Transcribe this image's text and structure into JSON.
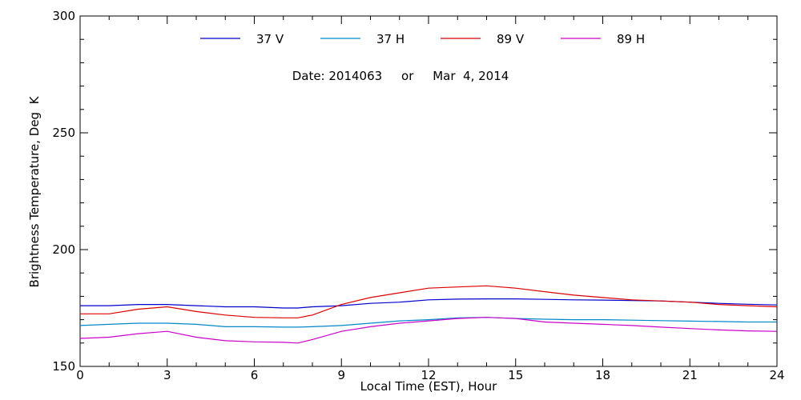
{
  "chart_data": {
    "type": "line",
    "subtitle": "Date: 2014063     or     Mar  4, 2014",
    "xlabel": "Local Time (EST), Hour",
    "ylabel": "Brightness Temperature, Deg  K",
    "xlim": [
      0,
      24
    ],
    "ylim": [
      150,
      300
    ],
    "x_ticks": [
      0,
      3,
      6,
      9,
      12,
      15,
      18,
      21,
      24
    ],
    "y_ticks": [
      150,
      200,
      250,
      300
    ],
    "legend_position": "top",
    "x": [
      0,
      1,
      2,
      3,
      4,
      5,
      6,
      7,
      7.5,
      8,
      9,
      10,
      11,
      12,
      13,
      14,
      15,
      16,
      17,
      18,
      19,
      20,
      21,
      22,
      23,
      24
    ],
    "series": [
      {
        "name": "37 V",
        "color": "#0000cc",
        "values": [
          176,
          176,
          176.5,
          176.5,
          176,
          175.5,
          175.5,
          175,
          175,
          175.5,
          176,
          177,
          177.5,
          178.5,
          178.8,
          178.9,
          178.9,
          178.7,
          178.5,
          178.4,
          178.2,
          178,
          177.5,
          177,
          176.6,
          176.3
        ]
      },
      {
        "name": "37 H",
        "color": "#0088cc",
        "values": [
          167.5,
          168,
          168.5,
          168.5,
          168,
          167,
          167,
          166.8,
          166.8,
          167,
          167.5,
          168.5,
          169.5,
          170,
          170.8,
          171,
          170.5,
          170.2,
          170,
          170,
          169.8,
          169.6,
          169.4,
          169.2,
          169,
          169
        ]
      },
      {
        "name": "89 V",
        "color": "#dd0000",
        "values": [
          172.5,
          172.5,
          174.5,
          175.5,
          173.5,
          172,
          171,
          170.8,
          170.8,
          172,
          176.5,
          179.5,
          181.5,
          183.5,
          184,
          184.5,
          183.5,
          182,
          180.5,
          179.5,
          178.5,
          178,
          177.5,
          176.5,
          176,
          175.5
        ]
      },
      {
        "name": "89 H",
        "color": "#cc00cc",
        "values": [
          162,
          162.5,
          164,
          165,
          162.5,
          161,
          160.5,
          160.3,
          160,
          161.5,
          165,
          167,
          168.5,
          169.5,
          170.5,
          171,
          170.5,
          169,
          168.5,
          168,
          167.5,
          166.8,
          166.2,
          165.6,
          165.2,
          165
        ]
      }
    ]
  }
}
